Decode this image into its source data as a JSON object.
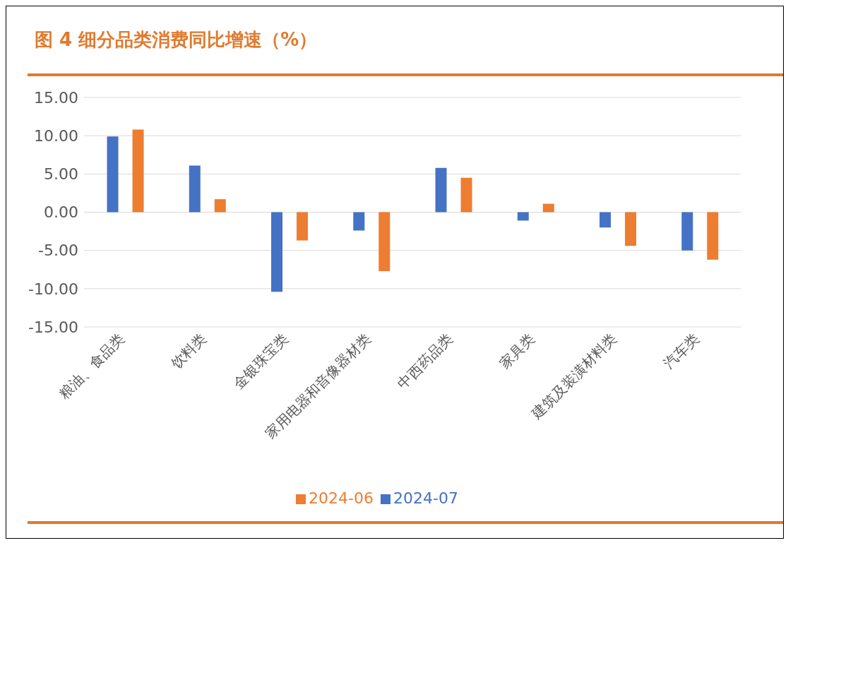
{
  "chart_data": {
    "type": "bar",
    "title": "图 4 细分品类消费同比增速（%）",
    "categories": [
      "粮油、食品类",
      "饮料类",
      "金银珠宝类",
      "家用电器和音像器材类",
      "中西药品类",
      "家具类",
      "建筑及装潢材料类",
      "汽车类"
    ],
    "series": [
      {
        "name": "2024-07",
        "color": "#4472c4",
        "values": [
          9.9,
          6.1,
          -10.4,
          -2.4,
          5.8,
          -1.1,
          -2.0,
          -5.0
        ]
      },
      {
        "name": "2024-06",
        "color": "#ed7d31",
        "values": [
          10.8,
          1.7,
          -3.7,
          -7.7,
          4.5,
          1.1,
          -4.4,
          -6.2
        ]
      }
    ],
    "ylim": [
      -15,
      15
    ],
    "yticks": [
      {
        "value": -15,
        "label": "-15.00"
      },
      {
        "value": -10,
        "label": "-10.00"
      },
      {
        "value": -5,
        "label": "-5.00"
      },
      {
        "value": 0,
        "label": "0.00"
      },
      {
        "value": 5,
        "label": "5.00"
      },
      {
        "value": 10,
        "label": "10.00"
      },
      {
        "value": 15,
        "label": "15.00"
      }
    ],
    "grid": "y",
    "legend": "bottom"
  }
}
